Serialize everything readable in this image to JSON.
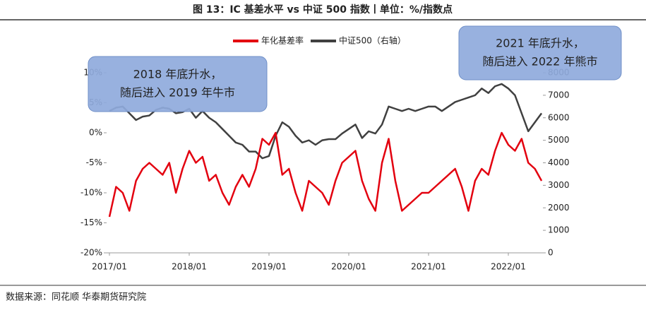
{
  "title": "图 13：IC 基差水平 vs 中证 500 指数丨单位：%/指数点",
  "source": "数据来源：同花顺 华泰期货研究院",
  "chart_data": {
    "type": "line",
    "x": [
      "2017/01",
      "2017/02",
      "2017/03",
      "2017/04",
      "2017/05",
      "2017/06",
      "2017/07",
      "2017/08",
      "2017/09",
      "2017/10",
      "2017/11",
      "2017/12",
      "2018/01",
      "2018/02",
      "2018/03",
      "2018/04",
      "2018/05",
      "2018/06",
      "2018/07",
      "2018/08",
      "2018/09",
      "2018/10",
      "2018/11",
      "2018/12",
      "2019/01",
      "2019/02",
      "2019/03",
      "2019/04",
      "2019/05",
      "2019/06",
      "2019/07",
      "2019/08",
      "2019/09",
      "2019/10",
      "2019/11",
      "2019/12",
      "2020/01",
      "2020/02",
      "2020/03",
      "2020/04",
      "2020/05",
      "2020/06",
      "2020/07",
      "2020/08",
      "2020/09",
      "2020/10",
      "2020/11",
      "2020/12",
      "2021/01",
      "2021/02",
      "2021/03",
      "2021/04",
      "2021/05",
      "2021/06",
      "2021/07",
      "2021/08",
      "2021/09",
      "2021/10",
      "2021/11",
      "2021/12",
      "2022/01",
      "2022/02",
      "2022/03",
      "2022/04",
      "2022/05",
      "2022/06"
    ],
    "xticks": [
      "2017/01",
      "2018/01",
      "2019/01",
      "2020/01",
      "2021/01",
      "2022/01"
    ],
    "series": [
      {
        "name": "年化基差率",
        "color": "#e3000f",
        "axis": "y",
        "values": [
          -14,
          -9,
          -10,
          -13,
          -8,
          -6,
          -5,
          -6,
          -7,
          -5,
          -10,
          -6,
          -3,
          -5,
          -4,
          -8,
          -7,
          -10,
          -12,
          -9,
          -7,
          -9,
          -6,
          -1,
          -2,
          0,
          -7,
          -6,
          -10,
          -13,
          -8,
          -9,
          -10,
          -12,
          -8,
          -5,
          -4,
          -3,
          -8,
          -11,
          -13,
          -5,
          -1,
          -8,
          -13,
          -12,
          -11,
          -10,
          -10,
          -9,
          -8,
          -7,
          -6,
          -9,
          -13,
          -8,
          -6,
          -7,
          -3,
          0,
          -2,
          -3,
          -1,
          -5,
          -6,
          -8
        ]
      },
      {
        "name": "中证500（右轴）",
        "color": "#404040",
        "axis": "y2",
        "values": [
          6300,
          6450,
          6500,
          6200,
          5900,
          6050,
          6100,
          6350,
          6450,
          6400,
          6200,
          6250,
          6400,
          6000,
          6300,
          6000,
          5800,
          5500,
          5200,
          4900,
          4800,
          4500,
          4500,
          4200,
          4300,
          5200,
          5800,
          5600,
          5200,
          4900,
          5000,
          4800,
          5000,
          5050,
          5050,
          5300,
          5500,
          5700,
          5100,
          5400,
          5300,
          5700,
          6500,
          6400,
          6300,
          6400,
          6300,
          6400,
          6500,
          6500,
          6300,
          6500,
          6700,
          6800,
          6900,
          7000,
          7300,
          7100,
          7400,
          7500,
          7300,
          7000,
          6200,
          5400,
          5800,
          6200
        ]
      }
    ],
    "ylim": [
      -20,
      10
    ],
    "yticks": [
      {
        "value": -20,
        "label": "-20%"
      },
      {
        "value": -15,
        "label": "-15%"
      },
      {
        "value": -10,
        "label": "-10%"
      },
      {
        "value": -5,
        "label": "-5%"
      },
      {
        "value": 0,
        "label": "0%"
      },
      {
        "value": 5,
        "label": "5%"
      },
      {
        "value": 10,
        "label": "10%"
      }
    ],
    "y2lim": [
      0,
      8000
    ],
    "y2ticks": [
      0,
      1000,
      2000,
      3000,
      4000,
      5000,
      6000,
      7000,
      8000
    ],
    "grid": false,
    "annotations": [
      {
        "lines": [
          "2018 年底升水，",
          "随后进入 2019 年牛市"
        ]
      },
      {
        "lines": [
          "2021 年底升水，",
          "随后进入 2022 年熊市"
        ]
      }
    ]
  }
}
